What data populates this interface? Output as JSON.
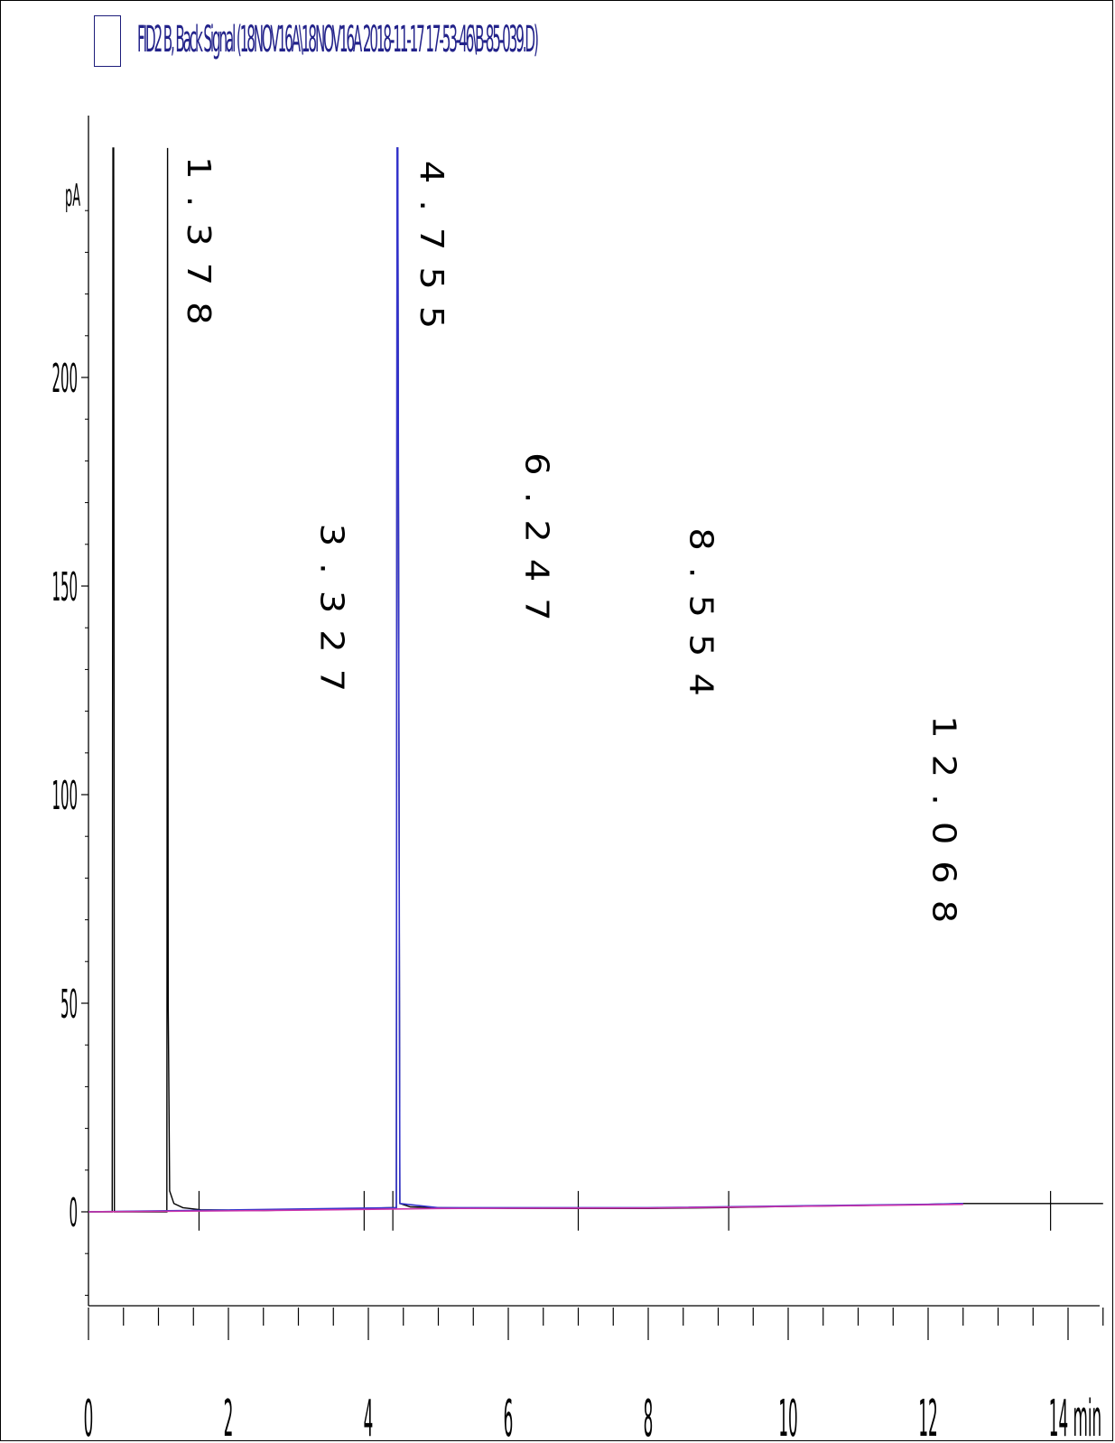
{
  "chart_data": {
    "type": "line",
    "title": "FID2 B, Back Signal (18NOV16A\\18NOV16A 2018-11-17 17-53-46\\B-85-039.D)",
    "ylabel": "pA",
    "xlabel": "min",
    "xlim": [
      0,
      14.5
    ],
    "ylim": [
      -22,
      255
    ],
    "y_ticks": [
      "0",
      "50",
      "100",
      "150",
      "200"
    ],
    "x_ticks": [
      "0",
      "2",
      "4",
      "6",
      "8",
      "10",
      "12",
      "14 min"
    ],
    "y_tick_values": [
      0,
      50,
      100,
      150,
      200
    ],
    "x_tick_values": [
      0,
      2,
      4,
      6,
      8,
      10,
      12,
      14
    ],
    "series": [
      {
        "color": "#000000",
        "x": [
          0,
          0.34,
          0.35,
          0.36,
          0.37,
          1.12,
          1.13,
          1.14,
          1.16,
          1.22,
          1.35,
          1.6,
          2.5,
          3.5,
          4.3,
          4.4,
          4.41,
          4.42,
          4.45,
          4.6,
          5.0,
          6.0,
          7.0,
          8.0,
          9.0,
          10.0,
          11.0,
          12.0,
          12.5,
          13.0,
          14.5
        ],
        "y": [
          0,
          0,
          255,
          255,
          0,
          0,
          255,
          50,
          5,
          2,
          1,
          0.5,
          0.3,
          0.6,
          1,
          1,
          255,
          255,
          2,
          1.2,
          1,
          0.8,
          0.8,
          0.8,
          1,
          1.3,
          1.5,
          1.8,
          2,
          2,
          2
        ]
      },
      {
        "color": "#3333cc",
        "x": [
          0,
          4.4,
          4.41,
          4.42,
          4.45,
          5.0,
          8.0,
          12.0,
          12.5
        ],
        "y": [
          0,
          1,
          255,
          255,
          2,
          1,
          1,
          1.8,
          2
        ]
      },
      {
        "color": "#cc33aa",
        "x": [
          0,
          2.5,
          5.0,
          8.0,
          12.5
        ],
        "y": [
          0,
          0.3,
          0.8,
          0.9,
          1.8
        ]
      }
    ],
    "retention_time_labels": [
      {
        "x": 1.42,
        "y_top": 253,
        "label": "1.378"
      },
      {
        "x": 3.32,
        "y_top": 165,
        "label": "3.327"
      },
      {
        "x": 4.75,
        "y_top": 252,
        "label": "4.755"
      },
      {
        "x": 6.25,
        "y_top": 182,
        "label": "6.247"
      },
      {
        "x": 8.6,
        "y_top": 164,
        "label": "8.554"
      },
      {
        "x": 12.07,
        "y_top": 119,
        "label": "12.068"
      }
    ],
    "event_markers": [
      1.58,
      3.94,
      4.35,
      7.0,
      9.15,
      13.75
    ]
  }
}
